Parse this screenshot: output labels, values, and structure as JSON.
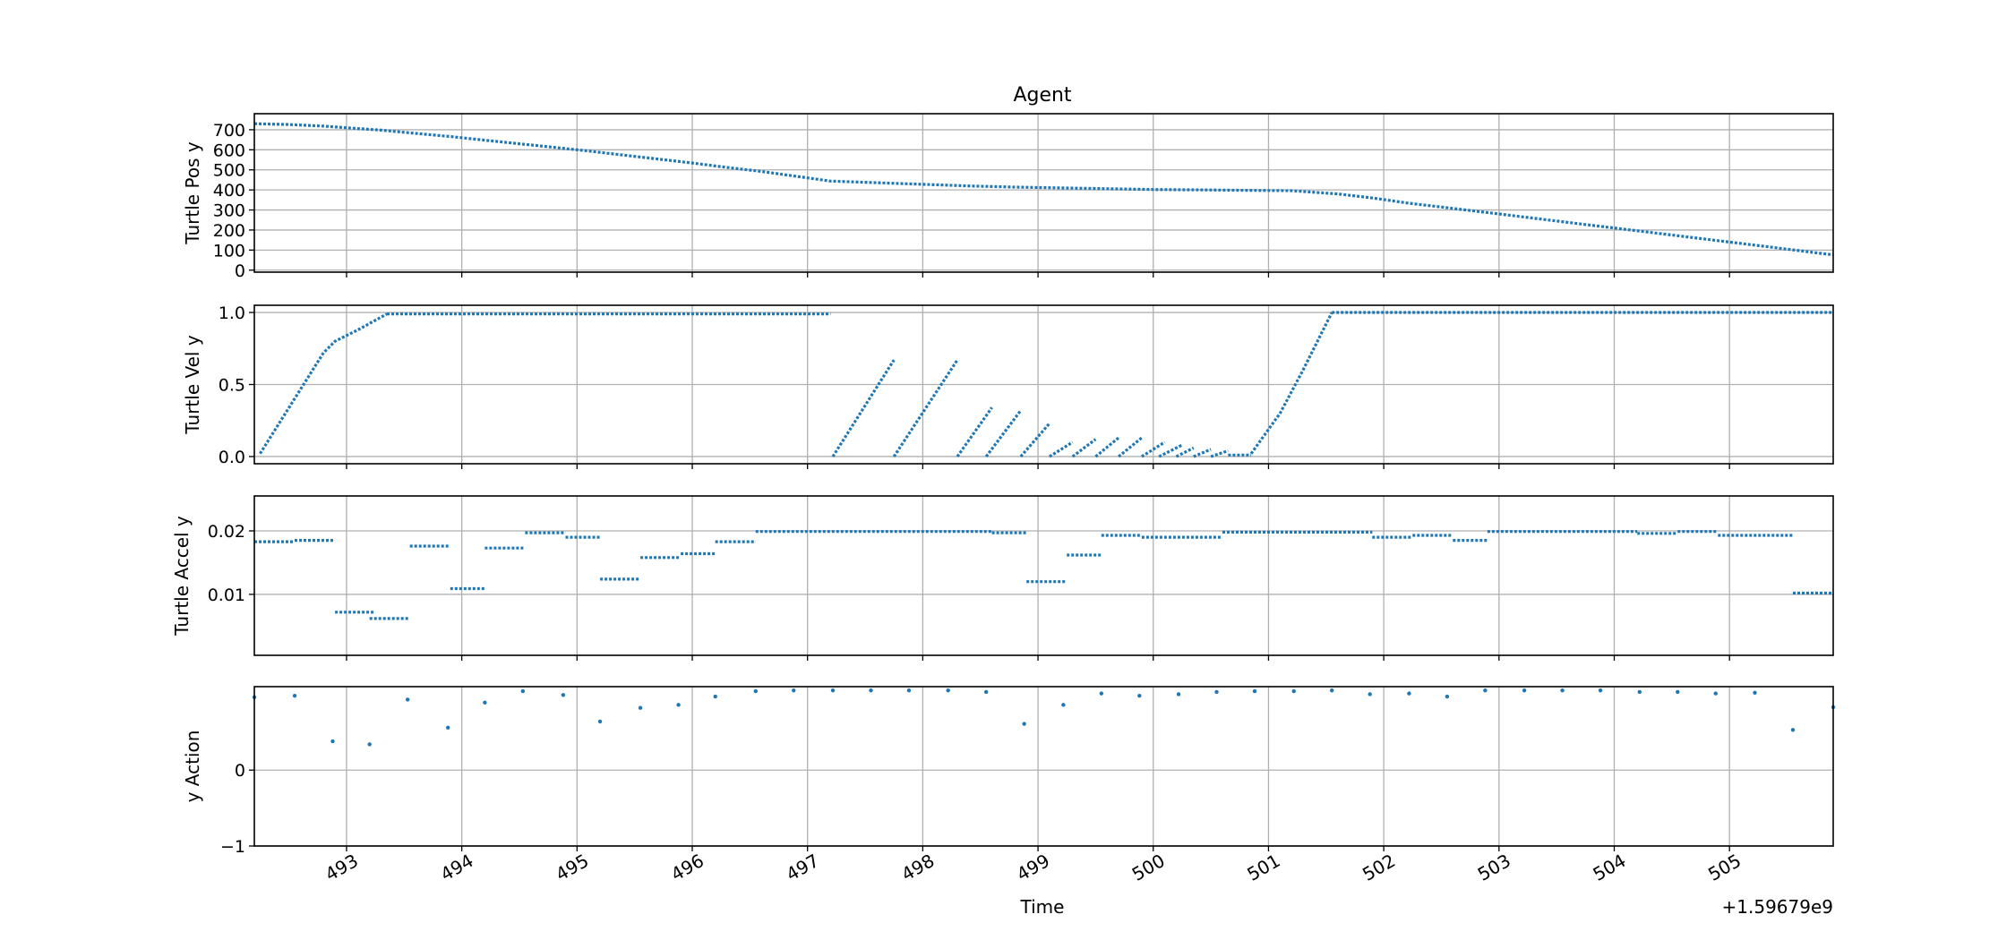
{
  "figure": {
    "title": "Agent",
    "xlabel": "Time",
    "x_offset_label": "+1.59679e9",
    "x_ticks": [
      493,
      494,
      495,
      496,
      497,
      498,
      499,
      500,
      501,
      502,
      503,
      504,
      505
    ],
    "x_tick_labels": [
      "493",
      "494",
      "495",
      "496",
      "497",
      "498",
      "499",
      "500",
      "501",
      "502",
      "503",
      "504",
      "505"
    ],
    "xlim": [
      492.2,
      505.9
    ],
    "colors": {
      "marker": "#1f77b4",
      "grid": "#b0b0b0",
      "axes": "#000000"
    }
  },
  "chart_data": [
    {
      "type": "scatter",
      "ylabel": "Turtle Pos y",
      "ylim": [
        -10,
        780
      ],
      "y_ticks": [
        0,
        100,
        200,
        300,
        400,
        500,
        600,
        700
      ],
      "y_tick_labels": [
        "0",
        "100",
        "200",
        "300",
        "400",
        "500",
        "600",
        "700"
      ],
      "grid": true,
      "series": [
        {
          "segments": [
            {
              "x": [
                492.2,
                492.5,
                492.8,
                493.0,
                493.3,
                493.6,
                493.9,
                494.2,
                494.5,
                494.8,
                495.1,
                495.4,
                495.7,
                496.0,
                496.3,
                496.6,
                496.9,
                497.2,
                497.6,
                498.0,
                498.4,
                498.8,
                499.2,
                499.6,
                500.0,
                500.4,
                500.8,
                501.2,
                501.6,
                501.9,
                502.2,
                502.6,
                503.0,
                503.4,
                503.8,
                504.2,
                504.6,
                505.0,
                505.4,
                505.9
              ],
              "y": [
                730,
                726,
                718,
                710,
                698,
                682,
                666,
                648,
                630,
                612,
                594,
                574,
                554,
                534,
                512,
                492,
                468,
                444,
                436,
                428,
                420,
                414,
                410,
                406,
                402,
                400,
                398,
                396,
                380,
                360,
                335,
                308,
                280,
                252,
                224,
                196,
                168,
                140,
                112,
                76
              ]
            }
          ]
        }
      ]
    },
    {
      "type": "scatter",
      "ylabel": "Turtle Vel y",
      "ylim": [
        -0.05,
        1.05
      ],
      "y_ticks": [
        0.0,
        0.5,
        1.0
      ],
      "y_tick_labels": [
        "0.0",
        "0.5",
        "1.0"
      ],
      "grid": true,
      "series": [
        {
          "segments": [
            {
              "x": [
                492.25,
                492.8,
                492.9,
                493.1,
                493.35
              ],
              "y": [
                0.02,
                0.72,
                0.8,
                0.88,
                0.99
              ]
            },
            {
              "x": [
                493.35,
                497.2
              ],
              "y": [
                0.99,
                0.99
              ]
            },
            {
              "x": [
                497.22,
                497.75
              ],
              "y": [
                0.0,
                0.67
              ]
            },
            {
              "x": [
                497.75,
                498.3
              ],
              "y": [
                0.0,
                0.67
              ]
            },
            {
              "x": [
                498.3,
                498.6
              ],
              "y": [
                0.0,
                0.34
              ]
            },
            {
              "x": [
                498.55,
                498.85
              ],
              "y": [
                0.0,
                0.32
              ]
            },
            {
              "x": [
                498.85,
                499.1
              ],
              "y": [
                0.0,
                0.23
              ]
            },
            {
              "x": [
                499.1,
                499.3
              ],
              "y": [
                0.0,
                0.1
              ]
            },
            {
              "x": [
                499.3,
                499.5
              ],
              "y": [
                0.0,
                0.12
              ]
            },
            {
              "x": [
                499.5,
                499.7
              ],
              "y": [
                0.0,
                0.13
              ]
            },
            {
              "x": [
                499.7,
                499.9
              ],
              "y": [
                0.0,
                0.13
              ]
            },
            {
              "x": [
                499.9,
                500.1
              ],
              "y": [
                0.0,
                0.1
              ]
            },
            {
              "x": [
                500.05,
                500.25
              ],
              "y": [
                0.0,
                0.08
              ]
            },
            {
              "x": [
                500.2,
                500.35
              ],
              "y": [
                0.0,
                0.06
              ]
            },
            {
              "x": [
                500.35,
                500.5
              ],
              "y": [
                0.0,
                0.05
              ]
            },
            {
              "x": [
                500.5,
                500.65
              ],
              "y": [
                0.0,
                0.04
              ]
            },
            {
              "x": [
                500.65,
                500.85
              ],
              "y": [
                0.01,
                0.01
              ]
            },
            {
              "x": [
                500.85,
                501.1,
                501.3,
                501.55
              ],
              "y": [
                0.02,
                0.3,
                0.6,
                1.0
              ]
            },
            {
              "x": [
                501.55,
                505.9
              ],
              "y": [
                1.0,
                1.0
              ]
            }
          ]
        }
      ]
    },
    {
      "type": "scatter",
      "ylabel": "Turtle Accel y",
      "ylim": [
        0.0004,
        0.0255
      ],
      "y_ticks": [
        0.01,
        0.02
      ],
      "y_tick_labels": [
        "0.01",
        "0.02"
      ],
      "grid": true,
      "series": [
        {
          "segments": [
            {
              "x": [
                492.2,
                492.55
              ],
              "y": [
                0.0183,
                0.0183
              ]
            },
            {
              "x": [
                492.55,
                492.9
              ],
              "y": [
                0.0185,
                0.0185
              ]
            },
            {
              "x": [
                492.9,
                493.25
              ],
              "y": [
                0.0072,
                0.0072
              ]
            },
            {
              "x": [
                493.2,
                493.55
              ],
              "y": [
                0.0062,
                0.0062
              ]
            },
            {
              "x": [
                493.55,
                493.9
              ],
              "y": [
                0.0176,
                0.0176
              ]
            },
            {
              "x": [
                493.9,
                494.2
              ],
              "y": [
                0.0109,
                0.0109
              ]
            },
            {
              "x": [
                494.2,
                494.55
              ],
              "y": [
                0.0173,
                0.0173
              ]
            },
            {
              "x": [
                494.55,
                494.9
              ],
              "y": [
                0.0197,
                0.0197
              ]
            },
            {
              "x": [
                494.9,
                495.2
              ],
              "y": [
                0.019,
                0.019
              ]
            },
            {
              "x": [
                495.2,
                495.55
              ],
              "y": [
                0.0124,
                0.0124
              ]
            },
            {
              "x": [
                495.55,
                495.9
              ],
              "y": [
                0.0158,
                0.0158
              ]
            },
            {
              "x": [
                495.9,
                496.2
              ],
              "y": [
                0.0164,
                0.0164
              ]
            },
            {
              "x": [
                496.2,
                496.55
              ],
              "y": [
                0.0183,
                0.0183
              ]
            },
            {
              "x": [
                496.55,
                498.6
              ],
              "y": [
                0.0199,
                0.0199
              ]
            },
            {
              "x": [
                498.6,
                498.9
              ],
              "y": [
                0.0197,
                0.0197
              ]
            },
            {
              "x": [
                498.9,
                499.25
              ],
              "y": [
                0.012,
                0.012
              ]
            },
            {
              "x": [
                499.25,
                499.55
              ],
              "y": [
                0.0162,
                0.0162
              ]
            },
            {
              "x": [
                499.55,
                499.9
              ],
              "y": [
                0.0193,
                0.0193
              ]
            },
            {
              "x": [
                499.9,
                500.6
              ],
              "y": [
                0.019,
                0.019
              ]
            },
            {
              "x": [
                500.6,
                501.9
              ],
              "y": [
                0.0198,
                0.0198
              ]
            },
            {
              "x": [
                501.9,
                502.25
              ],
              "y": [
                0.019,
                0.019
              ]
            },
            {
              "x": [
                502.25,
                502.6
              ],
              "y": [
                0.0193,
                0.0193
              ]
            },
            {
              "x": [
                502.6,
                502.9
              ],
              "y": [
                0.0185,
                0.0185
              ]
            },
            {
              "x": [
                502.9,
                504.2
              ],
              "y": [
                0.0199,
                0.0199
              ]
            },
            {
              "x": [
                504.2,
                504.55
              ],
              "y": [
                0.0196,
                0.0196
              ]
            },
            {
              "x": [
                504.55,
                504.9
              ],
              "y": [
                0.0199,
                0.0199
              ]
            },
            {
              "x": [
                504.9,
                505.55
              ],
              "y": [
                0.0193,
                0.0193
              ]
            },
            {
              "x": [
                505.55,
                505.9
              ],
              "y": [
                0.0102,
                0.0102
              ]
            }
          ]
        }
      ]
    },
    {
      "type": "scatter",
      "ylabel": "y Action",
      "ylim": [
        -1,
        1.1
      ],
      "y_ticks": [
        -1,
        0
      ],
      "y_tick_labels": [
        "−1",
        "0"
      ],
      "grid": true,
      "series": [
        {
          "points": {
            "x": [
              492.2,
              492.55,
              492.88,
              493.2,
              493.53,
              493.88,
              494.2,
              494.53,
              494.88,
              495.2,
              495.55,
              495.88,
              496.2,
              496.55,
              496.88,
              497.22,
              497.55,
              497.88,
              498.22,
              498.55,
              498.88,
              499.22,
              499.55,
              499.88,
              500.22,
              500.55,
              500.88,
              501.22,
              501.55,
              501.88,
              502.22,
              502.55,
              502.88,
              503.22,
              503.55,
              503.88,
              504.22,
              504.55,
              504.88,
              505.22,
              505.55,
              505.9
            ],
            "y": [
              0.96,
              0.98,
              0.38,
              0.34,
              0.93,
              0.56,
              0.89,
              1.04,
              0.99,
              0.64,
              0.82,
              0.86,
              0.97,
              1.04,
              1.05,
              1.05,
              1.05,
              1.05,
              1.05,
              1.03,
              0.61,
              0.86,
              1.01,
              0.98,
              1.0,
              1.03,
              1.04,
              1.04,
              1.05,
              1.0,
              1.01,
              0.97,
              1.05,
              1.05,
              1.05,
              1.05,
              1.03,
              1.03,
              1.01,
              1.02,
              0.53,
              0.83
            ]
          }
        }
      ]
    }
  ]
}
